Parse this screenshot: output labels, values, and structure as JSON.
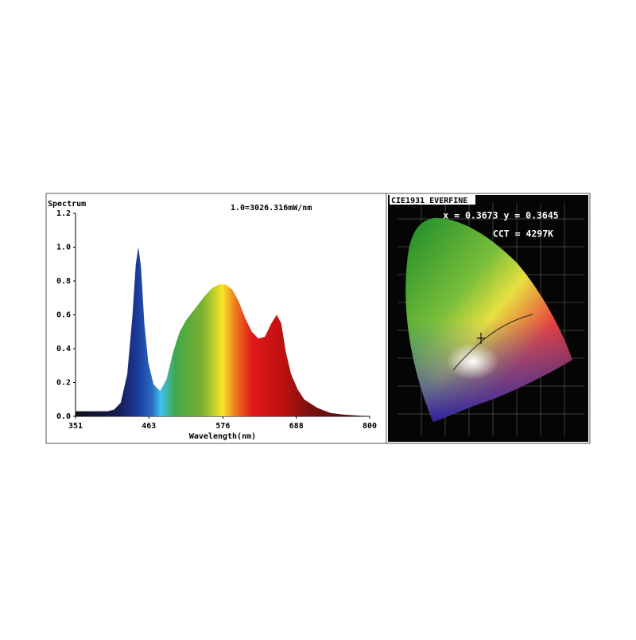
{
  "chart_data": [
    {
      "type": "area",
      "title": "Spectrum",
      "subtitle": "1.0=3026.316mW/nm",
      "x_label": "Wavelength(nm)",
      "x": [
        351,
        360,
        380,
        400,
        410,
        420,
        430,
        438,
        443,
        447,
        451,
        456,
        462,
        470,
        480,
        490,
        500,
        510,
        520,
        530,
        540,
        550,
        560,
        570,
        580,
        590,
        600,
        610,
        620,
        630,
        640,
        650,
        658,
        665,
        672,
        680,
        690,
        700,
        720,
        740,
        760,
        800
      ],
      "values": [
        0.03,
        0.03,
        0.03,
        0.03,
        0.04,
        0.08,
        0.25,
        0.6,
        0.9,
        1.0,
        0.88,
        0.55,
        0.32,
        0.19,
        0.15,
        0.22,
        0.38,
        0.5,
        0.57,
        0.62,
        0.67,
        0.72,
        0.76,
        0.78,
        0.78,
        0.75,
        0.68,
        0.58,
        0.5,
        0.46,
        0.47,
        0.55,
        0.6,
        0.55,
        0.38,
        0.25,
        0.16,
        0.1,
        0.05,
        0.02,
        0.01,
        0
      ],
      "xlim": [
        351,
        800
      ],
      "xticks": [
        351,
        463,
        576,
        688,
        800
      ],
      "ylim": [
        0,
        1.2
      ],
      "yticks": [
        {
          "value": 0,
          "label": "0.0"
        },
        0.2,
        0.4,
        0.6,
        0.8,
        {
          "value": 1,
          "label": "1.0"
        },
        1.2
      ]
    },
    {
      "type": "cie",
      "title": "CIE1931 EVERFINE",
      "annotations": [
        "x = 0.3673 y = 0.3645",
        "CCT = 4297K"
      ]
    }
  ]
}
